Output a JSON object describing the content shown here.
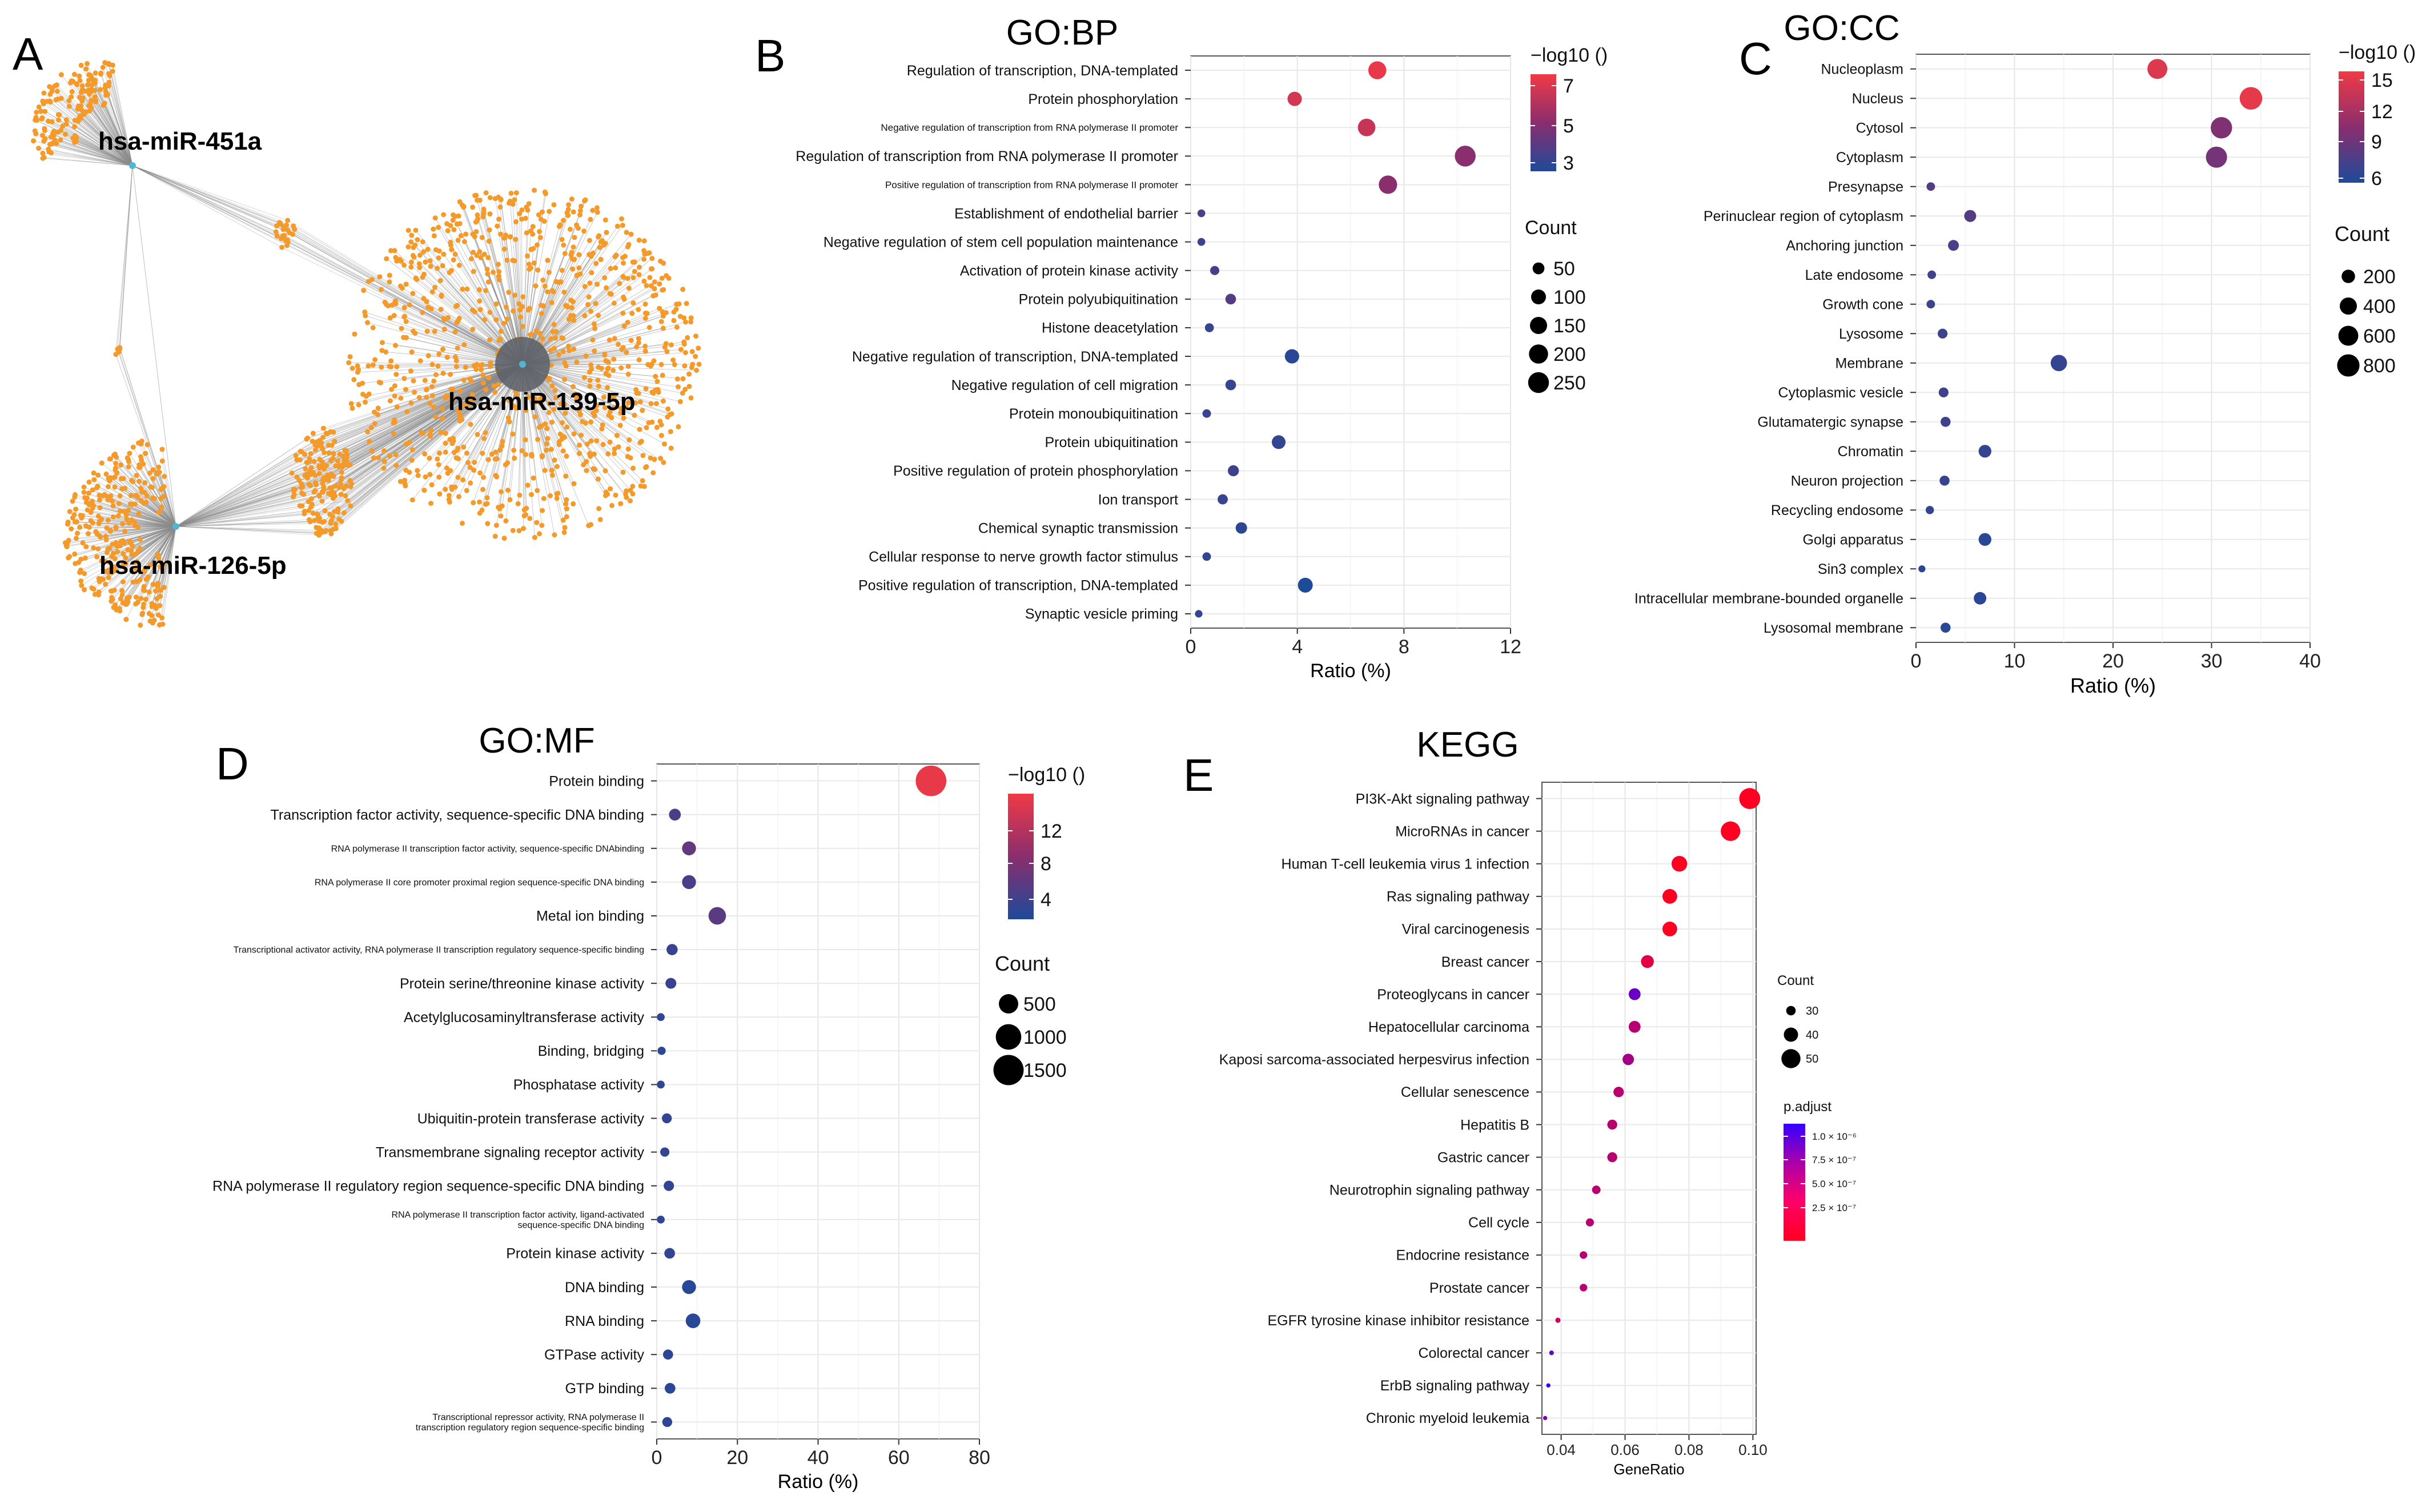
{
  "panel_letters": {
    "a": "A",
    "b": "B",
    "c": "C",
    "d": "D",
    "e": "E"
  },
  "network": {
    "hub_labels": [
      "hsa-miR-451a",
      "hsa-miR-139-5p",
      "hsa-miR-126-5p"
    ],
    "node_color": "#f39a2b",
    "edge_color": "#8a8a8a",
    "hub_color": "#4fb6d6"
  },
  "colors": {
    "low": "#1e4a9a",
    "mid": "#8a2e6e",
    "high": "#f03a46",
    "kegg_low": "#ff0022",
    "kegg_high": "#3300ff"
  },
  "chart_data": [
    {
      "type": "scatter",
      "title": "GO:BP",
      "xlabel": "Ratio (%)",
      "xlim": [
        0,
        12
      ],
      "xticks": [
        "0",
        "4",
        "8",
        "12"
      ],
      "color_legend_title": "−log10 ()",
      "color_ticks": [
        "7",
        "5",
        "3"
      ],
      "size_legend_title": "Count",
      "size_ticks": [
        "50",
        "100",
        "150",
        "200",
        "250"
      ],
      "grid": true,
      "categories": [
        "Regulation of transcription, DNA-templated",
        "Protein phosphorylation",
        "Negative regulation of transcription from RNA polymerase II promoter",
        "Regulation of transcription from RNA polymerase II promoter",
        "Positive regulation of transcription from RNA polymerase II promoter",
        "Establishment of endothelial barrier",
        "Negative regulation of stem cell population maintenance",
        "Activation of protein kinase activity",
        "Protein polyubiquitination",
        "Histone deacetylation",
        "Negative regulation of transcription, DNA-templated",
        "Negative regulation of cell migration",
        "Protein monoubiquitination",
        "Protein ubiquitination",
        "Positive regulation of protein phosphorylation",
        "Ion transport",
        "Chemical synaptic transmission",
        "Cellular response to nerve growth factor stimulus",
        "Positive regulation of transcription, DNA-templated",
        "Synaptic vesicle priming"
      ],
      "x": [
        7.0,
        3.9,
        6.6,
        10.3,
        7.4,
        0.4,
        0.4,
        0.9,
        1.5,
        0.7,
        3.8,
        1.5,
        0.6,
        3.3,
        1.6,
        1.2,
        1.9,
        0.6,
        4.3,
        0.3
      ],
      "log10": [
        7.0,
        6.6,
        6.3,
        5.0,
        5.0,
        3.8,
        3.4,
        3.6,
        3.9,
        3.3,
        3.0,
        3.3,
        3.3,
        3.2,
        3.5,
        3.3,
        3.1,
        3.2,
        2.8,
        3.2
      ],
      "count": [
        170,
        90,
        160,
        250,
        180,
        10,
        10,
        20,
        35,
        18,
        90,
        35,
        15,
        80,
        40,
        30,
        45,
        15,
        100,
        8
      ]
    },
    {
      "type": "scatter",
      "title": "GO:CC",
      "xlabel": "Ratio (%)",
      "xlim": [
        0,
        40
      ],
      "xticks": [
        "0",
        "10",
        "20",
        "30",
        "40"
      ],
      "color_legend_title": "−log10 ()",
      "color_ticks": [
        "15",
        "12",
        "9",
        "6"
      ],
      "size_legend_title": "Count",
      "size_ticks": [
        "200",
        "400",
        "600",
        "800"
      ],
      "grid": true,
      "categories": [
        "Nucleoplasm",
        "Nucleus",
        "Cytosol",
        "Cytoplasm",
        "Presynapse",
        "Perinuclear region of cytoplasm",
        "Anchoring junction",
        "Late endosome",
        "Growth cone",
        "Lysosome",
        "Membrane",
        "Cytoplasmic vesicle",
        "Glutamatergic synapse",
        "Chromatin",
        "Neuron projection",
        "Recycling endosome",
        "Golgi apparatus",
        "Sin3 complex",
        "Intracellular membrane-bounded organelle",
        "Lysosomal membrane"
      ],
      "x": [
        24.5,
        34.0,
        31.0,
        30.5,
        1.5,
        5.5,
        3.8,
        1.6,
        1.5,
        2.7,
        14.5,
        2.8,
        3.0,
        7.0,
        2.9,
        1.4,
        7.0,
        0.6,
        6.5,
        3.0
      ],
      "log10": [
        14.5,
        15.0,
        10.0,
        9.5,
        8.0,
        8.0,
        7.5,
        7.0,
        7.0,
        7.0,
        6.5,
        7.0,
        7.0,
        6.5,
        6.5,
        6.5,
        6.0,
        6.2,
        6.0,
        6.0
      ],
      "count": [
        600,
        820,
        720,
        700,
        40,
        140,
        100,
        40,
        40,
        70,
        350,
        70,
        75,
        170,
        75,
        35,
        170,
        15,
        160,
        75
      ]
    },
    {
      "type": "scatter",
      "title": "GO:MF",
      "xlabel": "Ratio (%)",
      "xlim": [
        0,
        80
      ],
      "xticks": [
        "0",
        "20",
        "40",
        "60",
        "80"
      ],
      "color_legend_title": "−log10 ()",
      "color_ticks": [
        "12",
        "8",
        "4"
      ],
      "size_legend_title": "Count",
      "size_ticks": [
        "500",
        "1000",
        "1500"
      ],
      "grid": true,
      "categories": [
        "Protein binding",
        "Transcription factor activity, sequence-specific DNA binding",
        "RNA polymerase II transcription factor activity, sequence-specific DNAbinding",
        "RNA polymerase II core promoter proximal region sequence-specific DNA binding",
        "Metal ion binding",
        "Transcriptional activator activity, RNA polymerase II transcription regulatory sequence-specific binding",
        "Protein serine/threonine kinase activity",
        "Acetylglucosaminyltransferase activity",
        "Binding, bridging",
        "Phosphatase activity",
        "Ubiquitin-protein transferase activity",
        "Transmembrane signaling receptor activity",
        "RNA polymerase II regulatory region sequence-specific DNA binding",
        "RNA polymerase II transcription factor activity, ligand-activated sequence-specific DNA binding",
        "Protein kinase activity",
        "DNA binding",
        "RNA binding",
        "GTPase activity",
        "GTP binding",
        "Transcriptional repressor activity, RNA polymerase II transcription regulatory region sequence-specific binding"
      ],
      "x": [
        68.0,
        4.5,
        8.0,
        8.0,
        15.0,
        3.8,
        3.5,
        1.0,
        1.2,
        1.0,
        2.5,
        2.0,
        3.0,
        1.0,
        3.2,
        8.0,
        9.0,
        2.8,
        3.3,
        2.6
      ],
      "log10": [
        14.5,
        5.0,
        6.5,
        5.0,
        6.0,
        4.0,
        4.0,
        3.5,
        3.5,
        3.5,
        3.8,
        3.6,
        3.8,
        3.5,
        3.7,
        3.0,
        3.0,
        3.3,
        3.2,
        3.3
      ],
      "count": [
        1550,
        120,
        200,
        200,
        380,
        100,
        90,
        25,
        30,
        25,
        65,
        50,
        75,
        25,
        85,
        200,
        230,
        70,
        85,
        65
      ]
    },
    {
      "type": "scatter",
      "title": "KEGG",
      "xlabel": "GeneRatio",
      "xlim": [
        0.034,
        0.101
      ],
      "xticks": [
        "0.04",
        "0.06",
        "0.08",
        "0.10"
      ],
      "color_legend_title": "p.adjust",
      "color_ticks": [
        "1.0 × 10⁻⁶",
        "7.5 × 10⁻⁷",
        "5.0 × 10⁻⁷",
        "2.5 × 10⁻⁷"
      ],
      "size_legend_title": "Count",
      "size_ticks": [
        "30",
        "40",
        "50"
      ],
      "grid": true,
      "categories": [
        "PI3K-Akt signaling pathway",
        "MicroRNAs in cancer",
        "Human T-cell leukemia virus 1 infection",
        "Ras signaling pathway",
        "Viral carcinogenesis",
        "Breast cancer",
        "Proteoglycans in cancer",
        "Hepatocellular carcinoma",
        "Kaposi sarcoma-associated herpesvirus infection",
        "Cellular senescence",
        "Hepatitis B",
        "Gastric cancer",
        "Neurotrophin signaling pathway",
        "Cell cycle",
        "Endocrine resistance",
        "Prostate cancer",
        "EGFR tyrosine kinase inhibitor resistance",
        "Colorectal cancer",
        "ErbB signaling pathway",
        "Chronic myeloid leukemia"
      ],
      "x": [
        0.099,
        0.093,
        0.077,
        0.074,
        0.074,
        0.067,
        0.063,
        0.063,
        0.061,
        0.058,
        0.056,
        0.056,
        0.051,
        0.049,
        0.047,
        0.047,
        0.039,
        0.037,
        0.036,
        0.035
      ],
      "p_adjust": [
        1e-08,
        1e-08,
        1e-08,
        1e-08,
        1e-08,
        2e-08,
        3e-07,
        5e-08,
        8e-08,
        5e-08,
        5e-08,
        5e-08,
        5e-08,
        5e-08,
        5e-08,
        5e-08,
        3e-08,
        3e-07,
        9e-07,
        2e-07
      ],
      "count": [
        54,
        51,
        43,
        41,
        41,
        37,
        35,
        35,
        34,
        32,
        31,
        31,
        28,
        27,
        26,
        26,
        21,
        20,
        19,
        19
      ]
    }
  ]
}
